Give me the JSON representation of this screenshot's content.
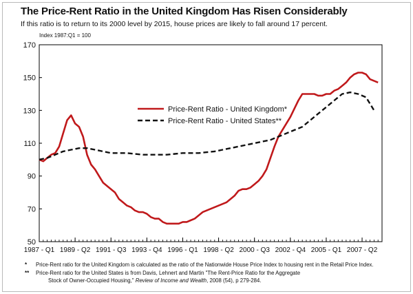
{
  "title": "The Price-Rent Ratio in the United Kingdom Has Risen Considerably",
  "subtitle": "If this ratio is to return to its 2000 level by 2015, house prices are likely to fall around 17 percent.",
  "index_note": "Index 1987:Q1 = 100",
  "colors": {
    "uk": "#c0191b",
    "us": "#111111",
    "axis": "#000000"
  },
  "footnotes": [
    {
      "mark": "*",
      "text": "Price-Rent ratio for the United Kingdom is calculated as the ratio of the Nationwide House Price Index to housing rent in the Retail Price Index."
    },
    {
      "mark": "**",
      "text": "Price-Rent ratio for the United States is from Davis, Lehnert and Martin \"The Rent-Price Ratio for the Aggregate"
    },
    {
      "mark": "",
      "text_pre": "Stock of Owner-Occupied Housing,\"",
      "text_italic": " Review of Income and Wealth",
      "text_post": ", 2008 (54), p 279-284."
    }
  ],
  "chart_data": {
    "type": "line",
    "xlabel": "",
    "ylabel": "",
    "ylim": [
      50,
      170
    ],
    "yticks": [
      50,
      70,
      90,
      110,
      130,
      150,
      170
    ],
    "x_range": [
      1987.0,
      2008.5
    ],
    "xtick_labels": [
      "1987 - Q1",
      "1989 - Q2",
      "1991 - Q3",
      "1993 - Q4",
      "1996 - Q1",
      "1998 - Q2",
      "2000 - Q3",
      "2002 - Q4",
      "2005 - Q1",
      "2007 - Q2"
    ],
    "xtick_values": [
      1987.0,
      1989.25,
      1991.5,
      1993.75,
      1996.0,
      1998.25,
      2000.5,
      2002.75,
      2005.0,
      2007.25
    ],
    "grid": false,
    "legend_position": "center-left",
    "series": [
      {
        "name": "Price-Rent Ratio - United Kingdom*",
        "style": "solid",
        "x": [
          1987.0,
          1987.25,
          1987.5,
          1987.75,
          1988.0,
          1988.25,
          1988.5,
          1988.75,
          1989.0,
          1989.25,
          1989.5,
          1989.75,
          1990.0,
          1990.25,
          1990.5,
          1990.75,
          1991.0,
          1991.25,
          1991.5,
          1991.75,
          1992.0,
          1992.25,
          1992.5,
          1992.75,
          1993.0,
          1993.25,
          1993.5,
          1993.75,
          1994.0,
          1994.25,
          1994.5,
          1994.75,
          1995.0,
          1995.25,
          1995.5,
          1995.75,
          1996.0,
          1996.25,
          1996.5,
          1996.75,
          1997.0,
          1997.25,
          1997.5,
          1997.75,
          1998.0,
          1998.25,
          1998.5,
          1998.75,
          1999.0,
          1999.25,
          1999.5,
          1999.75,
          2000.0,
          2000.25,
          2000.5,
          2000.75,
          2001.0,
          2001.25,
          2001.5,
          2001.75,
          2002.0,
          2002.25,
          2002.5,
          2002.75,
          2003.0,
          2003.25,
          2003.5,
          2003.75,
          2004.0,
          2004.25,
          2004.5,
          2004.75,
          2005.0,
          2005.25,
          2005.5,
          2005.75,
          2006.0,
          2006.25,
          2006.5,
          2006.75,
          2007.0,
          2007.25,
          2007.5,
          2007.75,
          2008.0,
          2008.25
        ],
        "values": [
          100,
          99,
          101,
          103,
          104,
          108,
          116,
          124,
          127,
          122,
          120,
          114,
          103,
          97,
          94,
          90,
          86,
          84,
          82,
          80,
          76,
          74,
          72,
          71,
          69,
          68,
          68,
          67,
          65,
          64,
          64,
          62,
          61,
          61,
          61,
          61,
          62,
          62,
          63,
          64,
          66,
          68,
          69,
          70,
          71,
          72,
          73,
          74,
          76,
          78,
          81,
          82,
          82,
          83,
          85,
          87,
          90,
          94,
          101,
          108,
          114,
          118,
          122,
          126,
          131,
          136,
          140,
          140,
          140,
          140,
          139,
          139,
          140,
          140,
          142,
          143,
          145,
          147,
          150,
          152,
          153,
          153,
          152,
          149,
          148,
          147
        ],
        "x_plot_max": 2008.0
      },
      {
        "name": "Price-Rent Ratio - United States**",
        "style": "dashed",
        "x": [
          1987.0,
          1987.5,
          1988.0,
          1988.5,
          1989.0,
          1989.5,
          1990.0,
          1990.5,
          1991.0,
          1991.5,
          1992.0,
          1992.5,
          1993.0,
          1993.5,
          1994.0,
          1994.5,
          1995.0,
          1995.5,
          1996.0,
          1996.5,
          1997.0,
          1997.5,
          1998.0,
          1998.5,
          1999.0,
          1999.5,
          2000.0,
          2000.5,
          2001.0,
          2001.5,
          2002.0,
          2002.5,
          2003.0,
          2003.5,
          2004.0,
          2004.5,
          2005.0,
          2005.5,
          2006.0,
          2006.5,
          2007.0,
          2007.5,
          2008.0
        ],
        "values": [
          100,
          101,
          103,
          105,
          106,
          107,
          107,
          106,
          105,
          104,
          104,
          104,
          103.5,
          103,
          103,
          103,
          103,
          103.5,
          104,
          104,
          104,
          104.5,
          105,
          106,
          107,
          108,
          109,
          110,
          111,
          112,
          114,
          116,
          118,
          120,
          124,
          128,
          132,
          136,
          140,
          141,
          140,
          138,
          130
        ]
      }
    ]
  }
}
